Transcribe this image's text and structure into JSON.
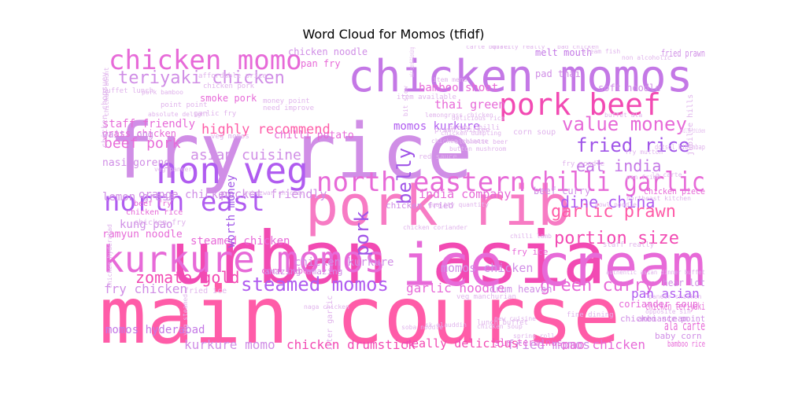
{
  "title": "Word Cloud for Momos (tfidf)",
  "colors": [
    "#ff5ca8",
    "#f24ab3",
    "#e76ad8",
    "#d08ee6",
    "#c478e6",
    "#b05cf0",
    "#a055e8",
    "#f77bc4",
    "#f2a6dc",
    "#e0b4ec"
  ],
  "words": [
    {
      "text": "main course",
      "c": 0
    },
    {
      "text": "urban asia",
      "c": 1
    },
    {
      "text": "ice cream",
      "c": 2
    },
    {
      "text": "fry rice",
      "c": 3
    },
    {
      "text": "pork rib",
      "c": 7
    },
    {
      "text": "chicken momos",
      "c": 4
    },
    {
      "text": "kurkure momos",
      "c": 2
    },
    {
      "text": "non veg",
      "c": 5
    },
    {
      "text": "pork beef",
      "c": 1
    },
    {
      "text": "chicken momo",
      "c": 2
    },
    {
      "text": "north eastern",
      "c": 2
    },
    {
      "text": "chilli garlic",
      "c": 2
    },
    {
      "text": "north east",
      "c": 5
    },
    {
      "text": "value money",
      "c": 2
    },
    {
      "text": "fried rice",
      "c": 6
    },
    {
      "text": "steamed momos",
      "c": 5
    },
    {
      "text": "teriyaki chicken",
      "c": 3
    },
    {
      "text": "garlic prawn",
      "c": 0
    },
    {
      "text": "portion size",
      "c": 1
    },
    {
      "text": "green curry",
      "c": 2
    },
    {
      "text": "dine china",
      "c": 5
    },
    {
      "text": "zomato gold",
      "c": 1
    },
    {
      "text": "eat india",
      "c": 4
    },
    {
      "text": "pork",
      "c": 6
    },
    {
      "text": "belly",
      "c": 6
    },
    {
      "text": "beef pork",
      "c": 2
    },
    {
      "text": "asian cuisine",
      "c": 3
    },
    {
      "text": "highly recommend",
      "c": 0
    },
    {
      "text": "garlic noodle",
      "c": 2
    },
    {
      "text": "kurkure momo",
      "c": 3
    },
    {
      "text": "chicken drumstick",
      "c": 1
    },
    {
      "text": "fried momos",
      "c": 3
    },
    {
      "text": "pao chicken",
      "c": 2
    },
    {
      "text": "ala carte",
      "c": 2
    },
    {
      "text": "pan asian",
      "c": 5
    },
    {
      "text": "fry chicken",
      "c": 3
    },
    {
      "text": "pocket friendly",
      "c": 3
    },
    {
      "text": "india company",
      "c": 2
    },
    {
      "text": "momos chicken",
      "c": 3
    },
    {
      "text": "kung pao",
      "c": 3
    },
    {
      "text": "lemon grass",
      "c": 3
    },
    {
      "text": "momos hyderabad",
      "c": 4
    },
    {
      "text": "really delicious",
      "c": 1
    },
    {
      "text": "bamboo shoot",
      "c": 2
    },
    {
      "text": "thai green",
      "c": 2
    },
    {
      "text": "momos kurkure",
      "c": 5
    },
    {
      "text": "staff friendly",
      "c": 2
    },
    {
      "text": "ramyun noodle",
      "c": 2
    },
    {
      "text": "orange chicken",
      "c": 3
    },
    {
      "text": "chilli potato",
      "c": 2
    },
    {
      "text": "steamed chicken",
      "c": 2
    },
    {
      "text": "chicken kurkure",
      "c": 3
    },
    {
      "text": "worth money",
      "c": 6
    },
    {
      "text": "nasi goreng",
      "c": 3
    },
    {
      "text": "smoke pork",
      "c": 2
    },
    {
      "text": "soft noodle",
      "c": 3
    },
    {
      "text": "pad thai",
      "c": 3
    },
    {
      "text": "melt mouth",
      "c": 4
    },
    {
      "text": "chicken noodle",
      "c": 3
    },
    {
      "text": "pan fry",
      "c": 2
    },
    {
      "text": "coriander soup",
      "c": 2
    },
    {
      "text": "fried prawn",
      "c": 3
    },
    {
      "text": "beef curry",
      "c": 3
    },
    {
      "text": "chicken piece",
      "c": 2
    },
    {
      "text": "chicken teriyaki",
      "c": 2
    },
    {
      "text": "ambiance point",
      "c": 3
    },
    {
      "text": "chicken steam",
      "c": 3
    },
    {
      "text": "bamboo rice",
      "c": 2
    },
    {
      "text": "baby corn",
      "c": 3
    },
    {
      "text": "hear lot",
      "c": 3
    },
    {
      "text": "sln terminus",
      "c": 2
    },
    {
      "text": "drum heaven",
      "c": 3
    },
    {
      "text": "fry ice",
      "c": 2
    },
    {
      "text": "chicken fried",
      "c": 3
    },
    {
      "text": "grass chicken",
      "c": 2
    },
    {
      "text": "wait long",
      "c": 3
    },
    {
      "text": "beef fry",
      "c": 2
    },
    {
      "text": "chicken rice",
      "c": 2
    },
    {
      "text": "corn cube",
      "c": 2
    },
    {
      "text": "amazing amazing",
      "c": 3
    },
    {
      "text": "chicken chopsuey",
      "c": 9
    },
    {
      "text": "jubilee hills",
      "c": 9
    },
    {
      "text": "fried ice",
      "c": 9
    },
    {
      "text": "butter garlic",
      "c": 9
    },
    {
      "text": "chicken fry",
      "c": 9
    },
    {
      "text": "veg momos",
      "c": 9
    },
    {
      "text": "item available",
      "c": 9
    },
    {
      "text": "corn soup",
      "c": 9
    },
    {
      "text": "fry noodle",
      "c": 9
    },
    {
      "text": "staff really",
      "c": 9
    },
    {
      "text": "veg manchurian",
      "c": 9
    },
    {
      "text": "honey chilli",
      "c": 9
    },
    {
      "text": "red sauce",
      "c": 9
    },
    {
      "text": "prawn chicken",
      "c": 9
    },
    {
      "text": "dotsol bibimbap",
      "c": 9
    },
    {
      "text": "buffet lunch",
      "c": 9
    },
    {
      "text": "point point",
      "c": 9
    },
    {
      "text": "garlic fry",
      "c": 9
    },
    {
      "text": "chicken pork",
      "c": 9
    },
    {
      "text": "money point",
      "c": 9
    },
    {
      "text": "need improve",
      "c": 9
    },
    {
      "text": "affordable price",
      "c": 9
    },
    {
      "text": "lunch buffet",
      "c": 9
    },
    {
      "text": "fine dining",
      "c": 9
    },
    {
      "text": "new cuisine",
      "c": 9
    },
    {
      "text": "spring roll",
      "c": 9
    },
    {
      "text": "chicken soup",
      "c": 9
    },
    {
      "text": "soba noodle",
      "c": 9
    },
    {
      "text": "naga chicken",
      "c": 9
    },
    {
      "text": "veg steamed",
      "c": 9
    },
    {
      "text": "bad chicken",
      "c": 9
    },
    {
      "text": "carte buffet",
      "c": 9
    },
    {
      "text": "quality really",
      "c": 9
    },
    {
      "text": "authentic asian dinner buffet",
      "c": 9
    },
    {
      "text": "opposite sin",
      "c": 9
    },
    {
      "text": "paneer chicken",
      "c": 9
    },
    {
      "text": "schezwan chicken",
      "c": 9
    },
    {
      "text": "chicken chinese",
      "c": 9
    },
    {
      "text": "alcoholic beer",
      "c": 9
    },
    {
      "text": "la carte",
      "c": 9
    },
    {
      "text": "steam fish",
      "c": 9
    },
    {
      "text": "lemongrass chicken",
      "c": 9
    },
    {
      "text": "delicious rice",
      "c": 9
    },
    {
      "text": "absolute delight",
      "c": 9
    },
    {
      "text": "pork bamboo",
      "c": 9
    },
    {
      "text": "item menu",
      "c": 9
    },
    {
      "text": "bit slow",
      "c": 9
    },
    {
      "text": "air conditioning",
      "c": 9
    },
    {
      "text": "veg paneer",
      "c": 9
    },
    {
      "text": "button mushroom",
      "c": 9
    },
    {
      "text": "chicken dumpling",
      "c": 9
    },
    {
      "text": "chicken burnt",
      "c": 9
    },
    {
      "text": "chicken hyderabad",
      "c": 9
    },
    {
      "text": "chicken coriander",
      "c": 9
    },
    {
      "text": "sk alauddin",
      "c": 9
    },
    {
      "text": "chilli lamb",
      "c": 9
    },
    {
      "text": "bowl noodle",
      "c": 9
    },
    {
      "text": "pan fried",
      "c": 9
    },
    {
      "text": "quality quantity",
      "c": 9
    },
    {
      "text": "buffet ala",
      "c": 9
    },
    {
      "text": "non alcoholic",
      "c": 9
    },
    {
      "text": "northeast kitchen",
      "c": 9
    },
    {
      "text": "chilli chicken",
      "c": 9
    },
    {
      "text": "fry mutton",
      "c": 9
    },
    {
      "text": "ok ok",
      "c": 9
    },
    {
      "text": "bad smell",
      "c": 9
    }
  ]
}
